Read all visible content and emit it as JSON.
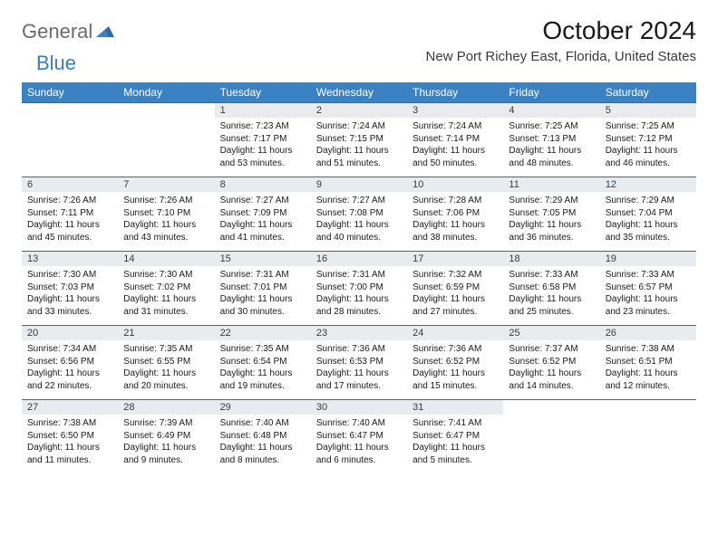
{
  "logo": {
    "text1": "General",
    "text2": "Blue"
  },
  "title": "October 2024",
  "location": "New Port Richey East, Florida, United States",
  "colors": {
    "header_bg": "#3b82c4",
    "header_text": "#ffffff",
    "daynum_bg": "#e8ecef",
    "row_border": "#3b6a9a",
    "logo_gray": "#6b6b6b",
    "logo_blue": "#3b7bbf"
  },
  "typography": {
    "title_fontsize": 28,
    "location_fontsize": 15,
    "dayhead_fontsize": 12,
    "daynum_fontsize": 11,
    "cell_fontsize": 10
  },
  "day_names": [
    "Sunday",
    "Monday",
    "Tuesday",
    "Wednesday",
    "Thursday",
    "Friday",
    "Saturday"
  ],
  "weeks": [
    [
      null,
      null,
      {
        "n": "1",
        "sr": "7:23 AM",
        "ss": "7:17 PM",
        "dl": "11 hours and 53 minutes."
      },
      {
        "n": "2",
        "sr": "7:24 AM",
        "ss": "7:15 PM",
        "dl": "11 hours and 51 minutes."
      },
      {
        "n": "3",
        "sr": "7:24 AM",
        "ss": "7:14 PM",
        "dl": "11 hours and 50 minutes."
      },
      {
        "n": "4",
        "sr": "7:25 AM",
        "ss": "7:13 PM",
        "dl": "11 hours and 48 minutes."
      },
      {
        "n": "5",
        "sr": "7:25 AM",
        "ss": "7:12 PM",
        "dl": "11 hours and 46 minutes."
      }
    ],
    [
      {
        "n": "6",
        "sr": "7:26 AM",
        "ss": "7:11 PM",
        "dl": "11 hours and 45 minutes."
      },
      {
        "n": "7",
        "sr": "7:26 AM",
        "ss": "7:10 PM",
        "dl": "11 hours and 43 minutes."
      },
      {
        "n": "8",
        "sr": "7:27 AM",
        "ss": "7:09 PM",
        "dl": "11 hours and 41 minutes."
      },
      {
        "n": "9",
        "sr": "7:27 AM",
        "ss": "7:08 PM",
        "dl": "11 hours and 40 minutes."
      },
      {
        "n": "10",
        "sr": "7:28 AM",
        "ss": "7:06 PM",
        "dl": "11 hours and 38 minutes."
      },
      {
        "n": "11",
        "sr": "7:29 AM",
        "ss": "7:05 PM",
        "dl": "11 hours and 36 minutes."
      },
      {
        "n": "12",
        "sr": "7:29 AM",
        "ss": "7:04 PM",
        "dl": "11 hours and 35 minutes."
      }
    ],
    [
      {
        "n": "13",
        "sr": "7:30 AM",
        "ss": "7:03 PM",
        "dl": "11 hours and 33 minutes."
      },
      {
        "n": "14",
        "sr": "7:30 AM",
        "ss": "7:02 PM",
        "dl": "11 hours and 31 minutes."
      },
      {
        "n": "15",
        "sr": "7:31 AM",
        "ss": "7:01 PM",
        "dl": "11 hours and 30 minutes."
      },
      {
        "n": "16",
        "sr": "7:31 AM",
        "ss": "7:00 PM",
        "dl": "11 hours and 28 minutes."
      },
      {
        "n": "17",
        "sr": "7:32 AM",
        "ss": "6:59 PM",
        "dl": "11 hours and 27 minutes."
      },
      {
        "n": "18",
        "sr": "7:33 AM",
        "ss": "6:58 PM",
        "dl": "11 hours and 25 minutes."
      },
      {
        "n": "19",
        "sr": "7:33 AM",
        "ss": "6:57 PM",
        "dl": "11 hours and 23 minutes."
      }
    ],
    [
      {
        "n": "20",
        "sr": "7:34 AM",
        "ss": "6:56 PM",
        "dl": "11 hours and 22 minutes."
      },
      {
        "n": "21",
        "sr": "7:35 AM",
        "ss": "6:55 PM",
        "dl": "11 hours and 20 minutes."
      },
      {
        "n": "22",
        "sr": "7:35 AM",
        "ss": "6:54 PM",
        "dl": "11 hours and 19 minutes."
      },
      {
        "n": "23",
        "sr": "7:36 AM",
        "ss": "6:53 PM",
        "dl": "11 hours and 17 minutes."
      },
      {
        "n": "24",
        "sr": "7:36 AM",
        "ss": "6:52 PM",
        "dl": "11 hours and 15 minutes."
      },
      {
        "n": "25",
        "sr": "7:37 AM",
        "ss": "6:52 PM",
        "dl": "11 hours and 14 minutes."
      },
      {
        "n": "26",
        "sr": "7:38 AM",
        "ss": "6:51 PM",
        "dl": "11 hours and 12 minutes."
      }
    ],
    [
      {
        "n": "27",
        "sr": "7:38 AM",
        "ss": "6:50 PM",
        "dl": "11 hours and 11 minutes."
      },
      {
        "n": "28",
        "sr": "7:39 AM",
        "ss": "6:49 PM",
        "dl": "11 hours and 9 minutes."
      },
      {
        "n": "29",
        "sr": "7:40 AM",
        "ss": "6:48 PM",
        "dl": "11 hours and 8 minutes."
      },
      {
        "n": "30",
        "sr": "7:40 AM",
        "ss": "6:47 PM",
        "dl": "11 hours and 6 minutes."
      },
      {
        "n": "31",
        "sr": "7:41 AM",
        "ss": "6:47 PM",
        "dl": "11 hours and 5 minutes."
      },
      null,
      null
    ]
  ],
  "labels": {
    "sunrise": "Sunrise:",
    "sunset": "Sunset:",
    "daylight": "Daylight:"
  }
}
